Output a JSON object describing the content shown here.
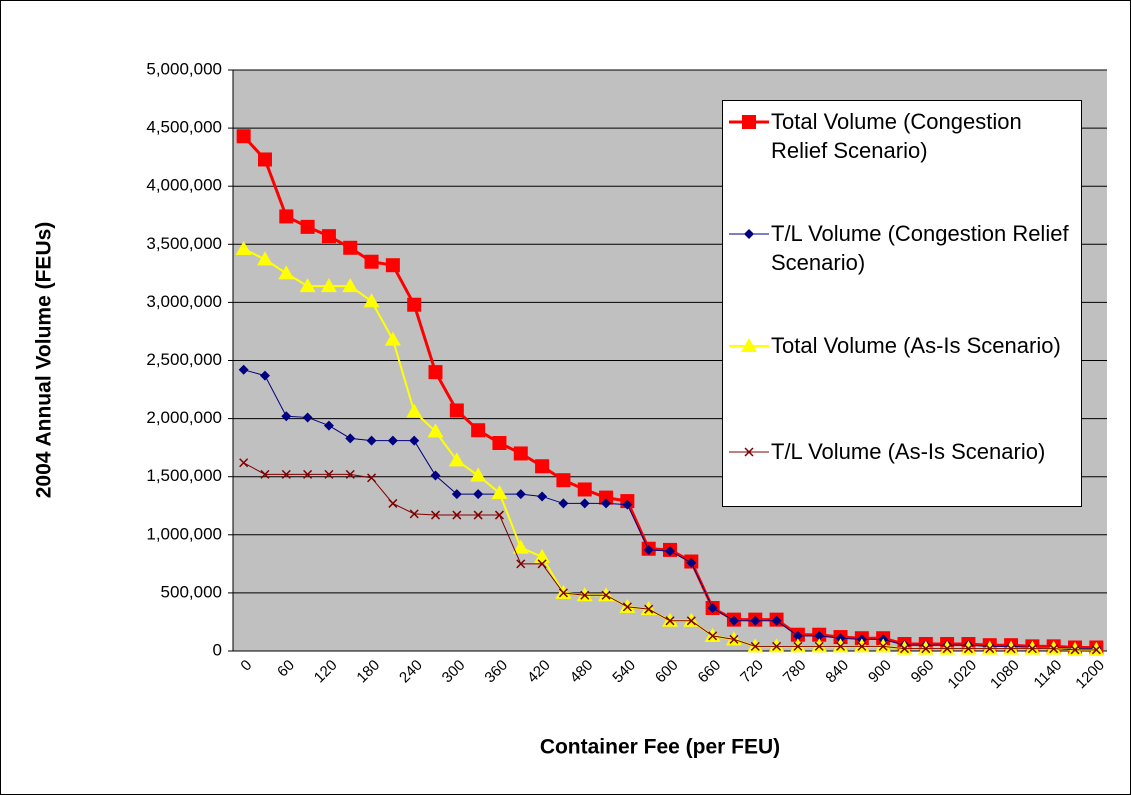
{
  "chart_data": {
    "type": "line",
    "xlabel": "Container Fee (per FEU)",
    "ylabel": "2004 Annual Volume (FEUs)",
    "categories": [
      0,
      null,
      60,
      null,
      120,
      null,
      180,
      null,
      240,
      null,
      300,
      null,
      360,
      null,
      420,
      null,
      480,
      null,
      540,
      null,
      600,
      null,
      660,
      null,
      720,
      null,
      780,
      null,
      840,
      null,
      900,
      null,
      960,
      null,
      1020,
      null,
      1080,
      null,
      1140,
      null,
      1200
    ],
    "ylim": [
      0,
      5000000
    ],
    "yticks": [
      0,
      {
        "value": 500000,
        "label": "500,000"
      },
      {
        "value": 1000000,
        "label": "1,000,000"
      },
      {
        "value": 1500000,
        "label": "1,500,000"
      },
      {
        "value": 2000000,
        "label": "2,000,000"
      },
      {
        "value": 2500000,
        "label": "2,500,000"
      },
      {
        "value": 3000000,
        "label": "3,000,000"
      },
      {
        "value": 3500000,
        "label": "3,500,000"
      },
      {
        "value": 4000000,
        "label": "4,000,000"
      },
      {
        "value": 4500000,
        "label": "4,500,000"
      },
      {
        "value": 5000000,
        "label": "5,000,000"
      }
    ],
    "grid": true,
    "legend": "upper right",
    "series": [
      {
        "name": "Total Volume (Congestion Relief Scenario)",
        "color": "#ff0000",
        "marker": "square",
        "values": [
          4430000,
          4230000,
          3740000,
          3650000,
          3570000,
          3470000,
          3350000,
          3320000,
          2980000,
          2400000,
          2070000,
          1900000,
          1790000,
          1700000,
          1590000,
          1470000,
          1390000,
          1320000,
          1290000,
          880000,
          870000,
          770000,
          370000,
          270000,
          270000,
          270000,
          140000,
          140000,
          120000,
          110000,
          110000,
          60000,
          60000,
          60000,
          60000,
          50000,
          50000,
          40000,
          40000,
          30000,
          30000
        ]
      },
      {
        "name": "T/L Volume (Congestion Relief Scenario)",
        "color": "#000080",
        "marker": "diamond",
        "values": [
          2420000,
          2370000,
          2020000,
          2010000,
          1940000,
          1830000,
          1810000,
          1810000,
          1810000,
          1510000,
          1350000,
          1350000,
          1350000,
          1350000,
          1330000,
          1270000,
          1270000,
          1270000,
          1260000,
          870000,
          860000,
          760000,
          370000,
          260000,
          260000,
          260000,
          130000,
          130000,
          110000,
          100000,
          100000,
          50000,
          50000,
          50000,
          50000,
          40000,
          40000,
          30000,
          30000,
          20000,
          20000
        ]
      },
      {
        "name": "Total Volume (As-Is Scenario)",
        "color": "#ffff00",
        "marker": "triangle",
        "values": [
          3460000,
          3370000,
          3250000,
          3140000,
          3140000,
          3140000,
          3010000,
          2680000,
          2060000,
          1890000,
          1640000,
          1510000,
          1360000,
          890000,
          810000,
          500000,
          480000,
          480000,
          380000,
          360000,
          260000,
          260000,
          130000,
          100000,
          40000,
          40000,
          40000,
          40000,
          40000,
          40000,
          40000,
          20000,
          20000,
          20000,
          20000,
          20000,
          20000,
          20000,
          20000,
          10000,
          10000
        ]
      },
      {
        "name": "T/L Volume (As-Is Scenario)",
        "color": "#800000",
        "marker": "x",
        "values": [
          1620000,
          1520000,
          1520000,
          1520000,
          1520000,
          1520000,
          1490000,
          1270000,
          1180000,
          1170000,
          1170000,
          1170000,
          1170000,
          750000,
          750000,
          500000,
          480000,
          480000,
          380000,
          360000,
          260000,
          260000,
          130000,
          100000,
          40000,
          40000,
          40000,
          40000,
          40000,
          40000,
          40000,
          20000,
          20000,
          20000,
          20000,
          20000,
          20000,
          20000,
          20000,
          10000,
          10000
        ]
      }
    ]
  }
}
